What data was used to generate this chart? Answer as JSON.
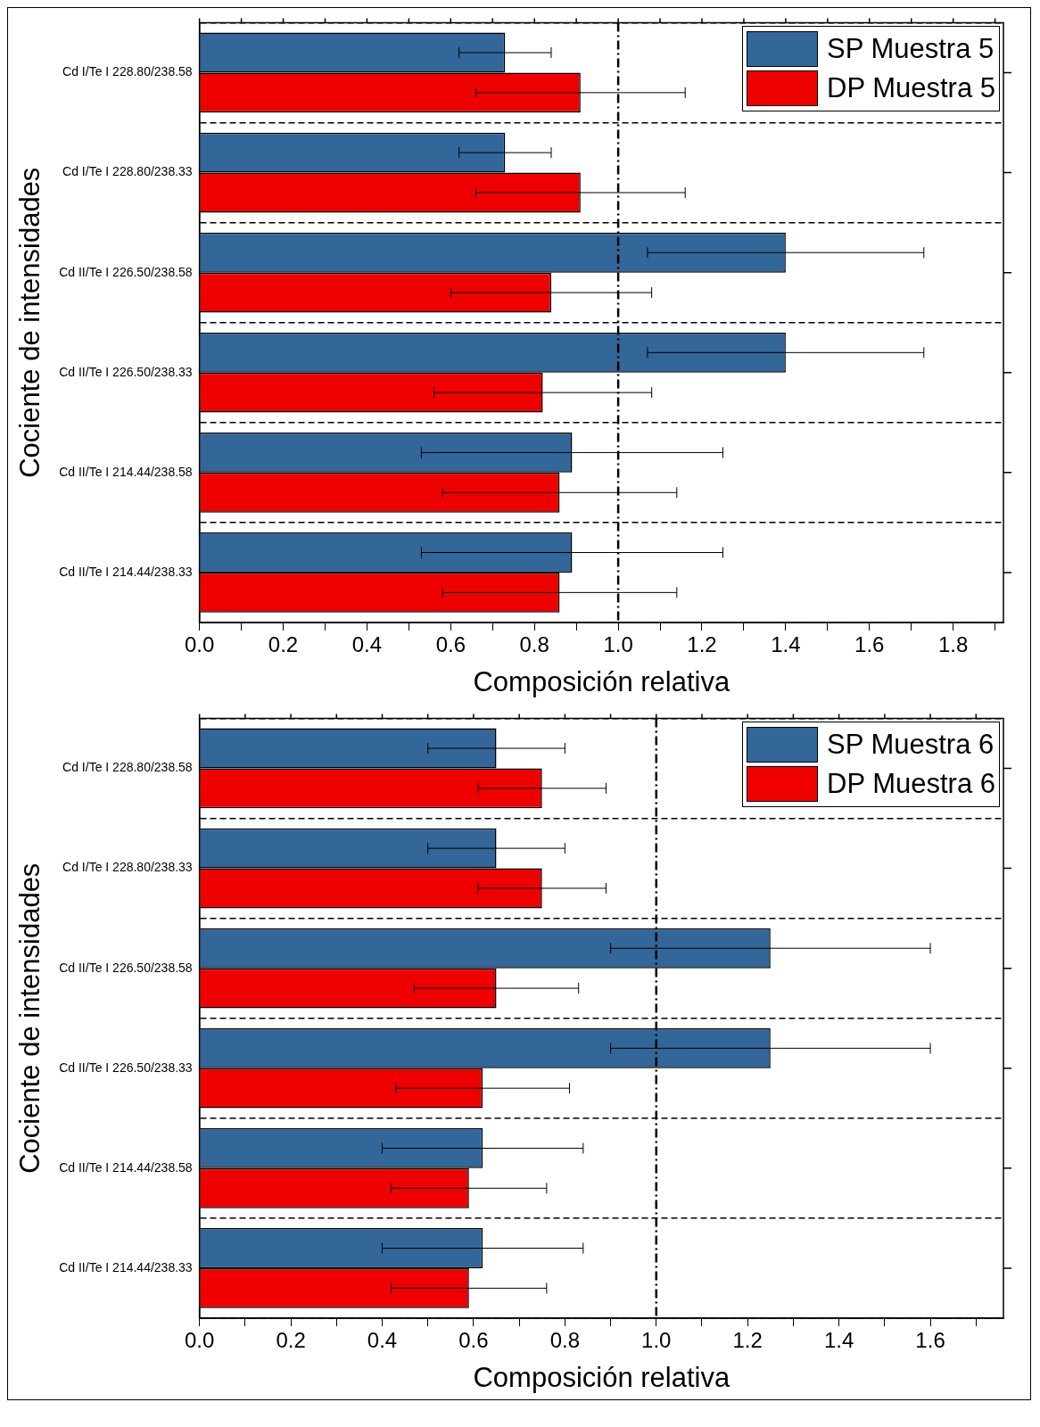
{
  "chart_data": [
    {
      "type": "bar",
      "orientation": "horizontal",
      "xlabel": "Composición relativa",
      "ylabel": "Cociente de intensidades",
      "categories": [
        "Cd I/Te I 228.80/238.58",
        "Cd I/Te I 228.80/238.33",
        "Cd II/Te I 226.50/238.58",
        "Cd II/Te I 226.50/238.33",
        "Cd II/Te I 214.44/238.58",
        "Cd II/Te I 214.44/238.33"
      ],
      "series": [
        {
          "name": "SP Muestra 5",
          "color": "#336699",
          "values": [
            0.73,
            0.73,
            1.4,
            1.4,
            0.89,
            0.89
          ],
          "errors": [
            0.11,
            0.11,
            0.33,
            0.33,
            0.36,
            0.36
          ]
        },
        {
          "name": "DP Muestra 5",
          "color": "#ee0000",
          "values": [
            0.91,
            0.91,
            0.84,
            0.82,
            0.86,
            0.86
          ],
          "errors": [
            0.25,
            0.25,
            0.24,
            0.26,
            0.28,
            0.28
          ]
        }
      ],
      "xlim": [
        0,
        1.92
      ],
      "xticks": [
        {
          "value": 0,
          "label": "0.0"
        },
        {
          "value": 0.1,
          "label": null
        },
        {
          "value": 0.2,
          "label": "0.2"
        },
        {
          "value": 0.3,
          "label": null
        },
        {
          "value": 0.4,
          "label": "0.4"
        },
        {
          "value": 0.5,
          "label": null
        },
        {
          "value": 0.6,
          "label": "0.6"
        },
        {
          "value": 0.7,
          "label": null
        },
        {
          "value": 0.8,
          "label": "0.8"
        },
        {
          "value": 0.9,
          "label": null
        },
        {
          "value": 1.0,
          "label": "1.0"
        },
        {
          "value": 1.1,
          "label": null
        },
        {
          "value": 1.2,
          "label": "1.2"
        },
        {
          "value": 1.3,
          "label": null
        },
        {
          "value": 1.4,
          "label": "1.4"
        },
        {
          "value": 1.5,
          "label": null
        },
        {
          "value": 1.6,
          "label": "1.6"
        },
        {
          "value": 1.7,
          "label": null
        },
        {
          "value": 1.8,
          "label": "1.8"
        },
        {
          "value": 1.9,
          "label": null
        }
      ],
      "ref_lines": [
        {
          "axis": "x",
          "value": 1.0,
          "color": "#000000",
          "line_style": "dashed"
        }
      ],
      "grid": "y",
      "legend": "top right"
    },
    {
      "type": "bar",
      "orientation": "horizontal",
      "xlabel": "Composición relativa",
      "ylabel": "Cociente de intensidades",
      "categories": [
        "Cd I/Te I 228.80/238.58",
        "Cd I/Te I 228.80/238.33",
        "Cd II/Te I 226.50/238.58",
        "Cd II/Te I 226.50/238.33",
        "Cd II/Te I 214.44/238.58",
        "Cd II/Te I 214.44/238.33"
      ],
      "series": [
        {
          "name": "SP Muestra 6",
          "color": "#336699",
          "values": [
            0.65,
            0.65,
            1.25,
            1.25,
            0.62,
            0.62
          ],
          "errors": [
            0.15,
            0.15,
            0.35,
            0.35,
            0.22,
            0.22
          ]
        },
        {
          "name": "DP Muestra 6",
          "color": "#ee0000",
          "values": [
            0.75,
            0.75,
            0.65,
            0.62,
            0.59,
            0.59
          ],
          "errors": [
            0.14,
            0.14,
            0.18,
            0.19,
            0.17,
            0.17
          ]
        }
      ],
      "xlim": [
        0,
        1.76
      ],
      "xticks": [
        {
          "value": 0,
          "label": "0.0"
        },
        {
          "value": 0.1,
          "label": null
        },
        {
          "value": 0.2,
          "label": "0.2"
        },
        {
          "value": 0.3,
          "label": null
        },
        {
          "value": 0.4,
          "label": "0.4"
        },
        {
          "value": 0.5,
          "label": null
        },
        {
          "value": 0.6,
          "label": "0.6"
        },
        {
          "value": 0.7,
          "label": null
        },
        {
          "value": 0.8,
          "label": "0.8"
        },
        {
          "value": 0.9,
          "label": null
        },
        {
          "value": 1.0,
          "label": "1.0"
        },
        {
          "value": 1.1,
          "label": null
        },
        {
          "value": 1.2,
          "label": "1.2"
        },
        {
          "value": 1.3,
          "label": null
        },
        {
          "value": 1.4,
          "label": "1.4"
        },
        {
          "value": 1.5,
          "label": null
        },
        {
          "value": 1.6,
          "label": "1.6"
        },
        {
          "value": 1.7,
          "label": null
        }
      ],
      "ref_lines": [
        {
          "axis": "x",
          "value": 1.0,
          "color": "#000000",
          "line_style": "dashed"
        }
      ],
      "grid": "y",
      "legend": "top right"
    }
  ]
}
